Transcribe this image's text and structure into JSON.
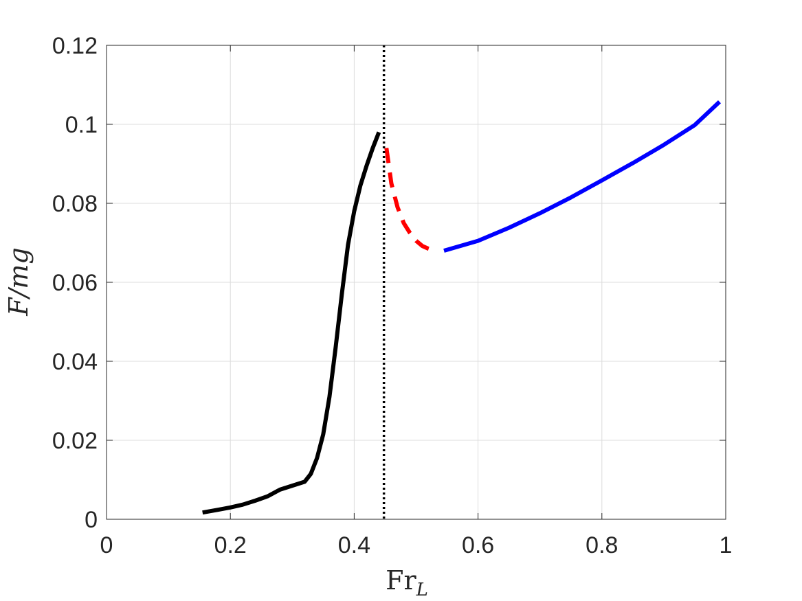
{
  "chart_data": {
    "type": "line",
    "xlabel": "Fr",
    "xlabel_subscript": "L",
    "ylabel": "F/mg",
    "xlim": [
      0,
      1
    ],
    "ylim": [
      0,
      0.12
    ],
    "xticks": [
      0,
      0.2,
      0.4,
      0.6,
      0.8,
      1
    ],
    "xtick_labels": [
      "0",
      "0.2",
      "0.4",
      "0.6",
      "0.8",
      "1"
    ],
    "yticks": [
      0,
      0.02,
      0.04,
      0.06,
      0.08,
      0.1,
      0.12
    ],
    "ytick_labels": [
      "0",
      "0.02",
      "0.04",
      "0.06",
      "0.08",
      "0.1",
      "0.12"
    ],
    "grid": true,
    "series": [
      {
        "color": "#000000",
        "style": "solid",
        "x": [
          0.155,
          0.18,
          0.2,
          0.22,
          0.24,
          0.26,
          0.28,
          0.3,
          0.32,
          0.33,
          0.34,
          0.35,
          0.36,
          0.37,
          0.38,
          0.39,
          0.4,
          0.41,
          0.42,
          0.43,
          0.44
        ],
        "y": [
          0.0017,
          0.0024,
          0.003,
          0.0037,
          0.0047,
          0.0058,
          0.0075,
          0.0085,
          0.0095,
          0.0115,
          0.0155,
          0.0215,
          0.031,
          0.0435,
          0.057,
          0.0695,
          0.078,
          0.0845,
          0.0895,
          0.094,
          0.098
        ]
      },
      {
        "color": "#ff0000",
        "style": "dashed",
        "x": [
          0.452,
          0.46,
          0.47,
          0.48,
          0.49,
          0.5,
          0.51,
          0.52,
          0.53
        ],
        "y": [
          0.094,
          0.085,
          0.079,
          0.075,
          0.0725,
          0.0705,
          0.0692,
          0.0685,
          0.068
        ]
      },
      {
        "color": "#0000ff",
        "style": "solid",
        "x": [
          0.545,
          0.6,
          0.65,
          0.7,
          0.75,
          0.8,
          0.85,
          0.9,
          0.95,
          0.99
        ],
        "y": [
          0.068,
          0.0705,
          0.0738,
          0.0775,
          0.0815,
          0.0858,
          0.0902,
          0.0948,
          0.0998,
          0.1057
        ]
      }
    ],
    "vline": {
      "x": 0.448,
      "color": "#000000",
      "style": "dotted"
    }
  }
}
